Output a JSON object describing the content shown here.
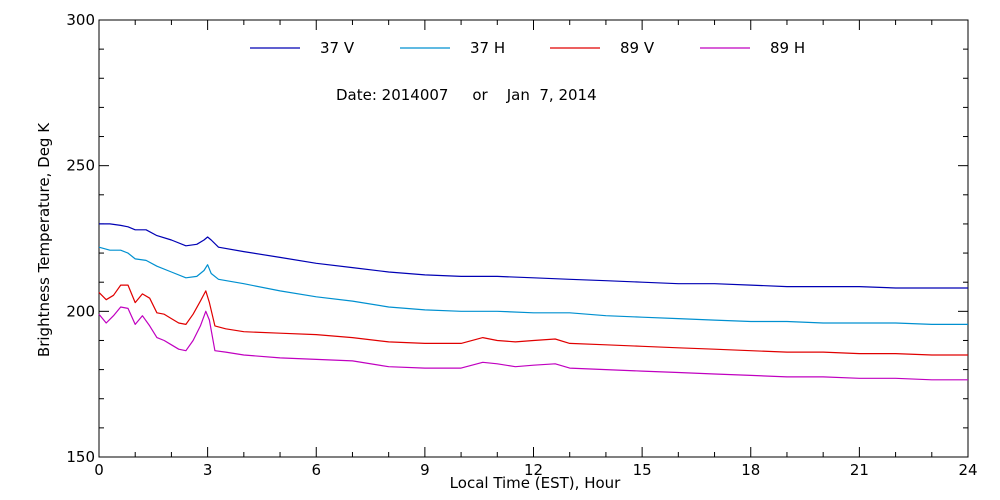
{
  "chart_data": {
    "type": "line",
    "xlabel": "Local Time (EST), Hour",
    "ylabel": "Brightness Temperature, Deg K",
    "xlim": [
      0,
      24
    ],
    "ylim": [
      150,
      300
    ],
    "xticks": [
      0,
      3,
      6,
      9,
      12,
      15,
      18,
      21,
      24
    ],
    "yticks": [
      150,
      200,
      250,
      300
    ],
    "x_minor_step": 1,
    "y_minor_step": 10,
    "grid": false,
    "legend_position": "top",
    "annotation": "Date: 2014007     or    Jan  7, 2014",
    "series": [
      {
        "name": "37 V",
        "color": "#0000b4",
        "x": [
          0,
          0.3,
          0.6,
          0.8,
          1.0,
          1.3,
          1.6,
          2.0,
          2.4,
          2.7,
          2.9,
          3.0,
          3.1,
          3.3,
          4.0,
          5.0,
          6.0,
          7.0,
          8.0,
          9.0,
          10.0,
          11.0,
          12.0,
          13.0,
          14.0,
          15.0,
          16.0,
          17.0,
          18.0,
          19.0,
          20.0,
          21.0,
          22.0,
          23.0,
          24.0
        ],
        "y": [
          230,
          230,
          229.5,
          229,
          228,
          228,
          226,
          224.5,
          222.5,
          223,
          224.5,
          225.5,
          224.5,
          222,
          220.5,
          218.5,
          216.5,
          215,
          213.5,
          212.5,
          212,
          212,
          211.5,
          211,
          210.5,
          210,
          209.5,
          209.5,
          209,
          208.5,
          208.5,
          208.5,
          208,
          208,
          208
        ]
      },
      {
        "name": "37 H",
        "color": "#0090d0",
        "x": [
          0,
          0.3,
          0.6,
          0.8,
          1.0,
          1.3,
          1.6,
          2.0,
          2.4,
          2.7,
          2.9,
          3.0,
          3.1,
          3.3,
          4.0,
          5.0,
          6.0,
          7.0,
          8.0,
          9.0,
          10.0,
          11.0,
          12.0,
          13.0,
          14.0,
          15.0,
          16.0,
          17.0,
          18.0,
          19.0,
          20.0,
          21.0,
          22.0,
          23.0,
          24.0
        ],
        "y": [
          222,
          221,
          221,
          220,
          218,
          217.5,
          215.5,
          213.5,
          211.5,
          212,
          214,
          216,
          213,
          211,
          209.5,
          207,
          205,
          203.5,
          201.5,
          200.5,
          200,
          200,
          199.5,
          199.5,
          198.5,
          198,
          197.5,
          197,
          196.5,
          196.5,
          196,
          196,
          196,
          195.5,
          195.5
        ]
      },
      {
        "name": "89 V",
        "color": "#e00000",
        "x": [
          0,
          0.2,
          0.4,
          0.6,
          0.8,
          1.0,
          1.2,
          1.4,
          1.6,
          1.8,
          2.0,
          2.2,
          2.4,
          2.6,
          2.8,
          2.95,
          3.05,
          3.2,
          3.5,
          4.0,
          5.0,
          6.0,
          7.0,
          8.0,
          9.0,
          10.0,
          10.6,
          11.0,
          11.5,
          12.0,
          12.6,
          13.0,
          14.0,
          15.0,
          16.0,
          17.0,
          18.0,
          19.0,
          20.0,
          21.0,
          22.0,
          23.0,
          24.0
        ],
        "y": [
          206.5,
          204,
          205.5,
          209,
          209,
          203,
          206,
          204.5,
          199.5,
          199,
          197.5,
          196,
          195.5,
          199,
          203.5,
          207,
          203,
          195,
          194,
          193,
          192.5,
          192,
          191,
          189.5,
          189,
          189,
          191,
          190,
          189.5,
          190,
          190.5,
          189,
          188.5,
          188,
          187.5,
          187,
          186.5,
          186,
          186,
          185.5,
          185.5,
          185,
          185
        ]
      },
      {
        "name": "89 H",
        "color": "#c000c0",
        "x": [
          0,
          0.2,
          0.4,
          0.6,
          0.8,
          1.0,
          1.2,
          1.4,
          1.6,
          1.8,
          2.0,
          2.2,
          2.4,
          2.6,
          2.8,
          2.95,
          3.05,
          3.2,
          3.5,
          4.0,
          5.0,
          6.0,
          7.0,
          8.0,
          9.0,
          10.0,
          10.6,
          11.0,
          11.5,
          12.0,
          12.6,
          13.0,
          14.0,
          15.0,
          16.0,
          17.0,
          18.0,
          19.0,
          20.0,
          21.0,
          22.0,
          23.0,
          24.0
        ],
        "y": [
          199,
          196,
          198.5,
          201.5,
          201,
          195.5,
          198.5,
          195,
          191,
          190,
          188.5,
          187,
          186.5,
          190,
          195,
          200,
          197,
          186.5,
          186,
          185,
          184,
          183.5,
          183,
          181,
          180.5,
          180.5,
          182.5,
          182,
          181,
          181.5,
          182,
          180.5,
          180,
          179.5,
          179,
          178.5,
          178,
          177.5,
          177.5,
          177,
          177,
          176.5,
          176.5
        ]
      }
    ]
  }
}
